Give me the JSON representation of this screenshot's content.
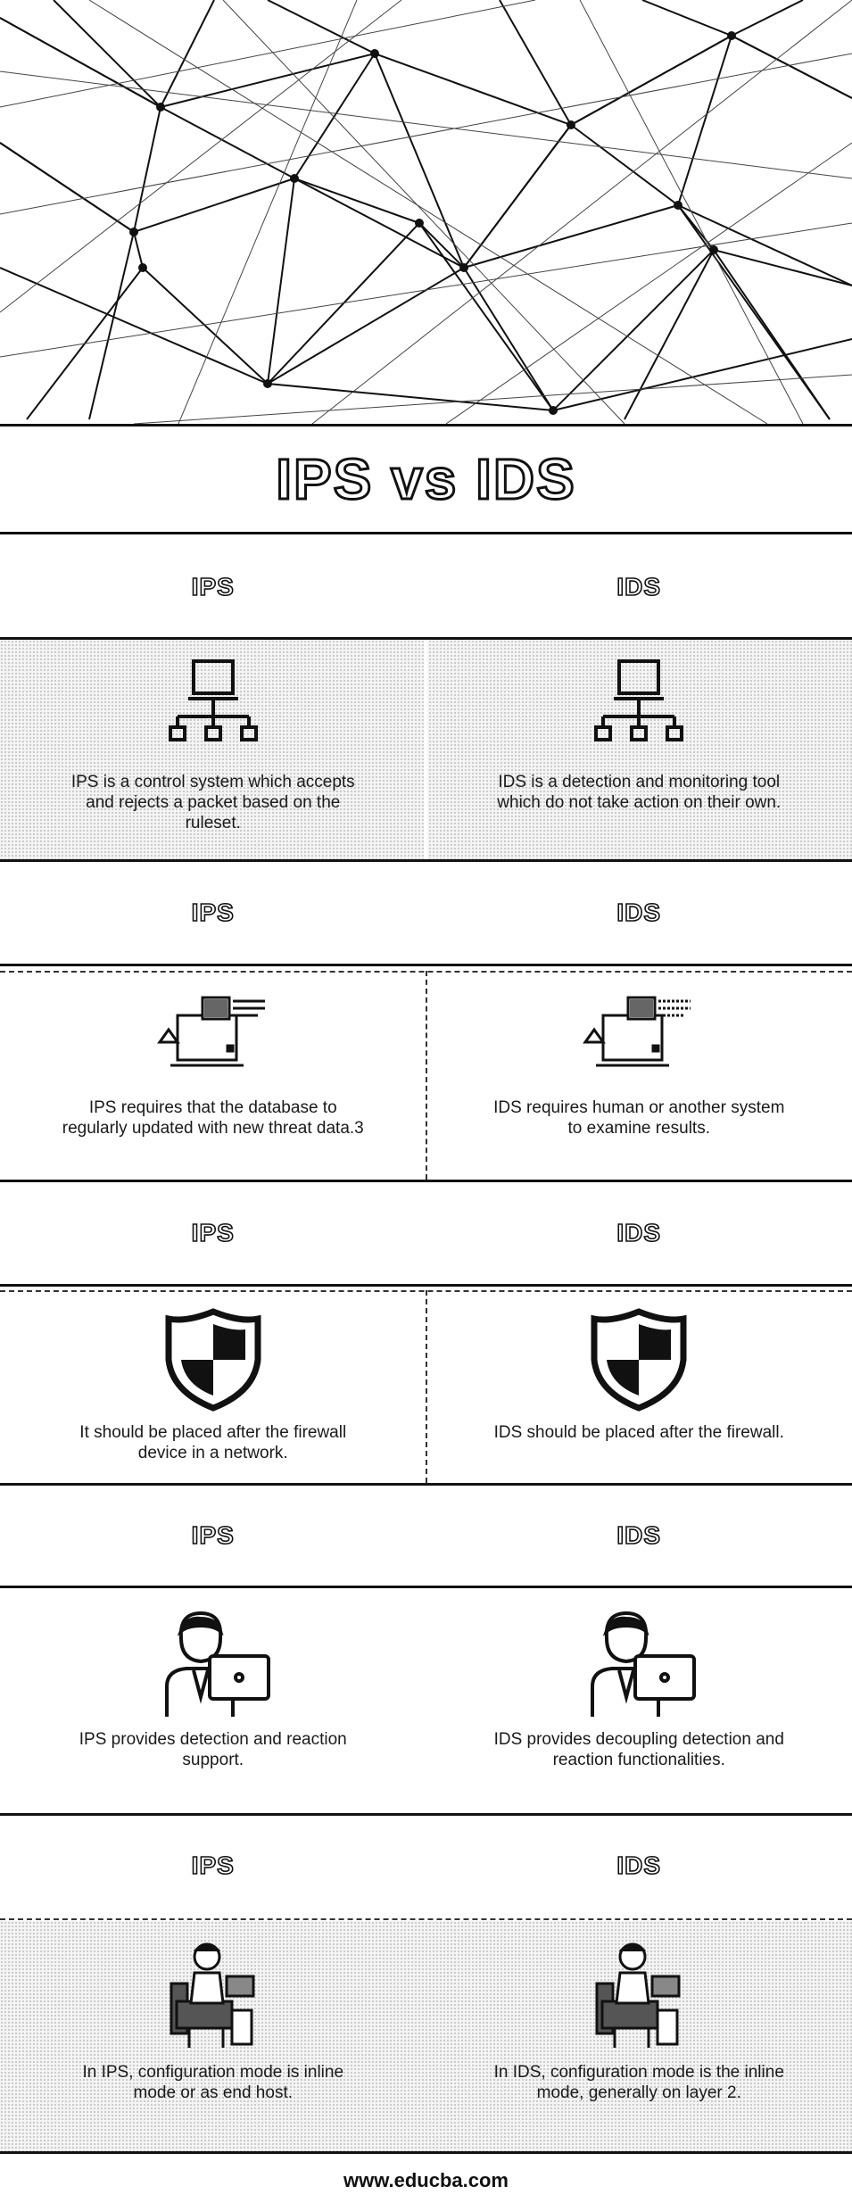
{
  "title": "IPS vs IDS",
  "left_heading": "IPS",
  "right_heading": "IDS",
  "rows": [
    {
      "left_icon": "network-computer-icon",
      "right_icon": "network-computer-icon",
      "left": "IPS is a control system which accepts and rejects a packet based on the ruleset.",
      "right": "IDS is a detection and monitoring tool which do not take action on their own."
    },
    {
      "left_icon": "monitor-alert-icon",
      "right_icon": "monitor-alert-icon",
      "left": "IPS requires that the database to regularly updated with new threat data.3",
      "right": "IDS requires human or another system to examine results."
    },
    {
      "left_icon": "shield-icon",
      "right_icon": "shield-icon",
      "left": "It should be placed after the firewall device in a network.",
      "right": "IDS should be placed after the firewall."
    },
    {
      "left_icon": "person-laptop-icon",
      "right_icon": "person-laptop-icon",
      "left": "IPS provides detection and reaction support.",
      "right": "IDS provides decoupling detection and reaction functionalities."
    },
    {
      "left_icon": "person-chair-icon",
      "right_icon": "person-chair-icon",
      "left": "In IPS, configuration mode is inline mode or as end host.",
      "right": "In IDS, configuration mode is the inline mode, generally on layer 2."
    }
  ],
  "footer": "www.educba.com"
}
